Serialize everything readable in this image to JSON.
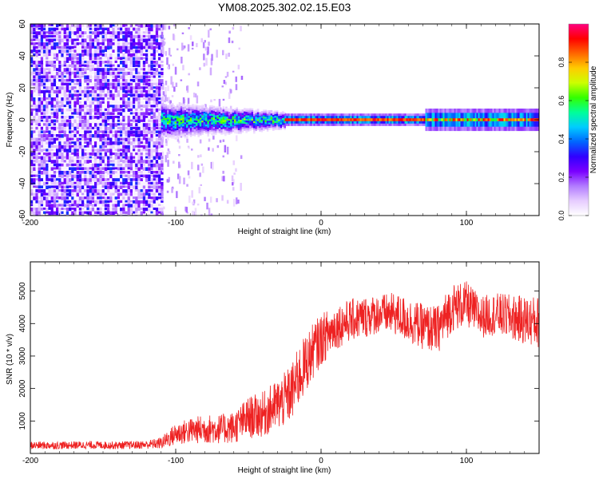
{
  "title": "YM08.2025.302.02.15.E03",
  "chart_data": [
    {
      "type": "heatmap",
      "panel": "top",
      "xlabel": "Height of straight line (km)",
      "ylabel": "Frequency (Hz)",
      "xlim": [
        -200,
        150
      ],
      "ylim": [
        -60,
        60
      ],
      "xticks": [
        -200,
        -100,
        0,
        100
      ],
      "yticks": [
        60,
        40,
        20,
        0,
        -20,
        -40,
        -60
      ],
      "colorbar": {
        "label": "Normalized spectral amplitude",
        "range": [
          0,
          1
        ],
        "ticks": [
          0.0,
          0.2,
          0.4,
          0.6,
          0.8
        ],
        "colormap": [
          "#ffffff",
          "#e6ccff",
          "#b27cff",
          "#7a00ff",
          "#3000ff",
          "#0066ff",
          "#00ccff",
          "#00ff99",
          "#33ff00",
          "#ccff00",
          "#ffcc00",
          "#ff6600",
          "#ff0000",
          "#ff0080"
        ]
      },
      "regions": [
        {
          "name": "broadband noise",
          "x": [
            -200,
            -110
          ],
          "freq_span": [
            -60,
            60
          ],
          "amplitude": 0.25
        },
        {
          "name": "sparse scatter",
          "x": [
            -110,
            -55
          ],
          "freq_span": [
            -60,
            60
          ],
          "amplitude": 0.05
        },
        {
          "name": "spreading band",
          "x": [
            -110,
            -25
          ],
          "freq_center": 0,
          "half_width": [
            8,
            4
          ],
          "peak_amplitude": 0.5
        },
        {
          "name": "narrow line",
          "x": [
            -25,
            150
          ],
          "freq_center": 0,
          "half_width": [
            1.5,
            1.5
          ],
          "peak_amplitude": 0.95
        }
      ]
    },
    {
      "type": "line",
      "panel": "bottom",
      "xlabel": "Height of straight line (km)",
      "ylabel": "SNR (10 * v/v)",
      "xlim": [
        -200,
        150
      ],
      "ylim": [
        0,
        5900
      ],
      "xticks": [
        -200,
        -100,
        0,
        100
      ],
      "yticks": [
        1000,
        2000,
        3000,
        4000,
        5000
      ],
      "color": "#ee2222",
      "series": [
        {
          "name": "SNR",
          "x": [
            -200,
            -180,
            -160,
            -140,
            -120,
            -110,
            -100,
            -90,
            -80,
            -70,
            -60,
            -50,
            -40,
            -30,
            -25,
            -20,
            -15,
            -10,
            -5,
            0,
            5,
            10,
            20,
            30,
            40,
            50,
            60,
            70,
            80,
            90,
            100,
            110,
            120,
            130,
            140,
            150
          ],
          "y": [
            250,
            250,
            260,
            250,
            270,
            320,
            600,
            700,
            750,
            750,
            800,
            1100,
            1200,
            1500,
            1650,
            1900,
            2400,
            2800,
            3200,
            3500,
            3700,
            3900,
            4100,
            4200,
            4300,
            4300,
            4100,
            3900,
            3800,
            4500,
            4600,
            4200,
            4300,
            4200,
            4100,
            4050
          ],
          "spread": [
            120,
            120,
            120,
            120,
            130,
            180,
            350,
            400,
            450,
            450,
            500,
            650,
            700,
            800,
            850,
            900,
            950,
            900,
            850,
            800,
            750,
            700,
            650,
            650,
            600,
            650,
            700,
            700,
            750,
            750,
            700,
            650,
            650,
            700,
            750,
            800
          ]
        }
      ]
    }
  ]
}
